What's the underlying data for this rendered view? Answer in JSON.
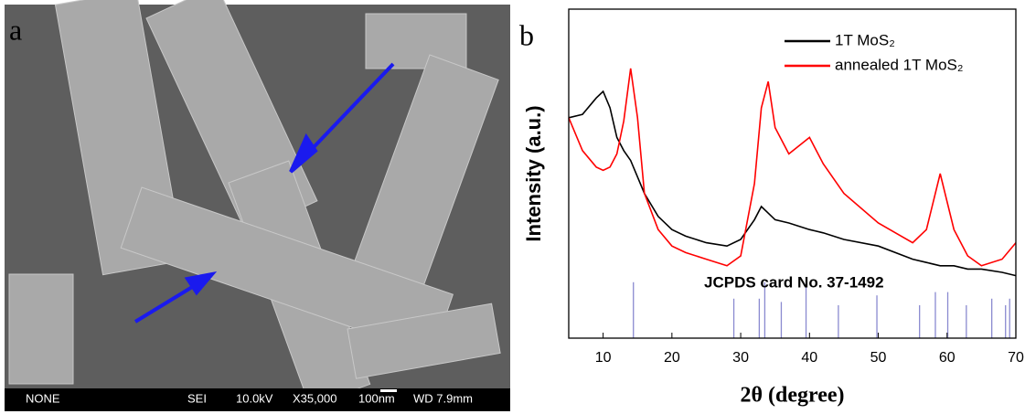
{
  "panel_a": {
    "label": "a",
    "info_bar": [
      "NONE",
      "SEI",
      "10.0kV",
      "X35,000",
      "100nm",
      "WD 7.9mm"
    ]
  },
  "chart_data": {
    "type": "line",
    "panel_label": "b",
    "x_label": "2θ (degree)",
    "y_label": "Intensity (a.u.)",
    "annotation": "JCPDS card No. 37-1492",
    "xlim": [
      5,
      70
    ],
    "xticks": [
      10,
      20,
      30,
      40,
      50,
      60,
      70
    ],
    "ylim": [
      0,
      100
    ],
    "legend": "top-right",
    "x": [
      5,
      7,
      9,
      10,
      11,
      12,
      13,
      14,
      15,
      16,
      18,
      20,
      22,
      25,
      28,
      30,
      32,
      33,
      34,
      35,
      37,
      40,
      42,
      45,
      50,
      55,
      57,
      59,
      61,
      63,
      65,
      68,
      70
    ],
    "series": [
      {
        "name": "1T MoS₂",
        "color": "#000000",
        "values": [
          67,
          68,
          73,
          75,
          70,
          61,
          57,
          54,
          49,
          44,
          37,
          33,
          31,
          29,
          28,
          30,
          36,
          40,
          38,
          36,
          35,
          33,
          32,
          30,
          28,
          24,
          23,
          22,
          22,
          21,
          21,
          20,
          19
        ]
      },
      {
        "name": "annealed 1T MoS₂",
        "color": "#ff0000",
        "values": [
          67,
          57,
          52,
          51,
          52,
          56,
          66,
          82,
          67,
          44,
          33,
          28,
          26,
          24,
          22,
          25,
          47,
          70,
          78,
          64,
          56,
          61,
          53,
          44,
          35,
          29,
          33,
          50,
          33,
          25,
          22,
          24,
          29
        ]
      }
    ],
    "reference_lines": {
      "color": "#8a8ad0",
      "x": [
        14.4,
        29,
        32.7,
        33.5,
        35.9,
        39.5,
        44.2,
        49.8,
        56,
        58.3,
        60.1,
        62.8,
        66.5,
        68.5,
        69.1
      ],
      "values": [
        17,
        12,
        12,
        17,
        11,
        17,
        10,
        13,
        10,
        14,
        14,
        10,
        12,
        10,
        12
      ]
    }
  }
}
